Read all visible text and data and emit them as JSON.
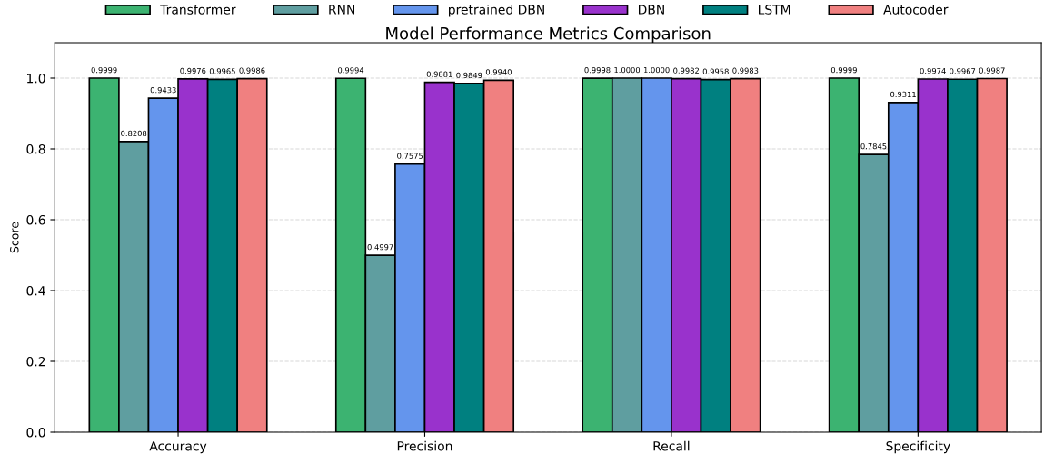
{
  "chart_data": {
    "type": "bar",
    "title": "Model Performance Metrics Comparison",
    "ylabel": "Score",
    "categories": [
      "Accuracy",
      "Precision",
      "Recall",
      "Specificity"
    ],
    "series": [
      {
        "name": "Transformer",
        "color": "#3cb371",
        "values": [
          0.9999,
          0.9994,
          0.9998,
          0.9999
        ],
        "value_labels": [
          "0.9999",
          "0.9994",
          "0.9998",
          "0.9999"
        ]
      },
      {
        "name": "RNN",
        "color": "#5f9ea0",
        "values": [
          0.8208,
          0.4997,
          1.0,
          0.7845
        ],
        "value_labels": [
          "0.8208",
          "0.4997",
          "1.0000",
          "0.7845"
        ]
      },
      {
        "name": "pretrained DBN",
        "color": "#6495ed",
        "values": [
          0.9433,
          0.7575,
          1.0,
          0.9311
        ],
        "value_labels": [
          "0.9433",
          "0.7575",
          "1.0000",
          "0.9311"
        ]
      },
      {
        "name": "DBN",
        "color": "#9932cc",
        "values": [
          0.9976,
          0.9881,
          0.9982,
          0.9974
        ],
        "value_labels": [
          "0.9976",
          "0.9881",
          "0.9982",
          "0.9974"
        ]
      },
      {
        "name": "LSTM",
        "color": "#008080",
        "values": [
          0.9965,
          0.9849,
          0.9958,
          0.9967
        ],
        "value_labels": [
          "0.9965",
          "0.9849",
          "0.9958",
          "0.9967"
        ]
      },
      {
        "name": "Autocoder",
        "color": "#f08080",
        "values": [
          0.9986,
          0.994,
          0.9983,
          0.9987
        ],
        "value_labels": [
          "0.9986",
          "0.9940",
          "0.9983",
          "0.9987"
        ]
      }
    ],
    "ylim": [
      0,
      1.1
    ],
    "yticks": [
      {
        "value": 0,
        "label": "0.0"
      },
      {
        "value": 0.2,
        "label": "0.2"
      },
      {
        "value": 0.4,
        "label": "0.4"
      },
      {
        "value": 0.6,
        "label": "0.6"
      },
      {
        "value": 0.8,
        "label": "0.8"
      },
      {
        "value": 1.0,
        "label": "1.0"
      }
    ],
    "grid": "y",
    "legend": "top"
  }
}
